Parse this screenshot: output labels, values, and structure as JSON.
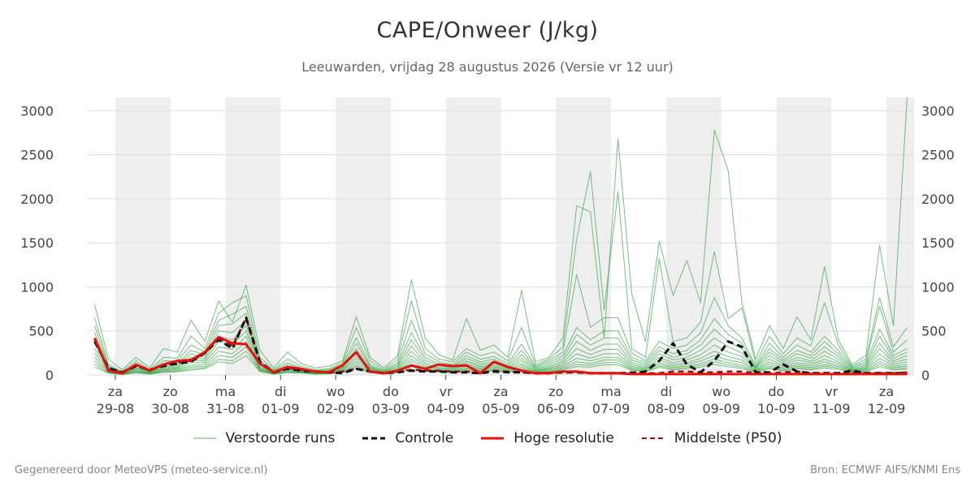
{
  "title": "CAPE/Onweer (J/kg)",
  "subtitle": "Leeuwarden, vrijdag 28 augustus 2026 (Versie vr 12 uur)",
  "footer": {
    "left": "Gegenereerd door MeteoVPS (meteo-service.nl)",
    "right": "Bron: ECMWF AIFS/KNMI Ens"
  },
  "legend": {
    "perturbed": "Verstoorde runs",
    "control": "Controle",
    "hires": "Hoge resolutie",
    "median": "Middelste (P50)"
  },
  "colors": {
    "perturbed": "#2e9e3e",
    "control": "#111111",
    "hires": "#e3120b",
    "median": "#9b1010",
    "night_band": "#eeeeee",
    "grid": "#dddddd"
  },
  "chart_data": {
    "type": "line",
    "title": "CAPE/Onweer (J/kg)",
    "x_unit": "hours after 2026-08-29 00:00",
    "xlim": [
      -12,
      348
    ],
    "ylim": [
      0,
      3150
    ],
    "yticks": [
      0,
      500,
      1000,
      1500,
      2000,
      2500,
      3000
    ],
    "grid": true,
    "legend_position": "bottom",
    "x_ticks": [
      {
        "day": "za",
        "date": "29-08"
      },
      {
        "day": "zo",
        "date": "30-08"
      },
      {
        "day": "ma",
        "date": "31-08"
      },
      {
        "day": "di",
        "date": "01-09"
      },
      {
        "day": "wo",
        "date": "02-09"
      },
      {
        "day": "do",
        "date": "03-09"
      },
      {
        "day": "vr",
        "date": "04-09"
      },
      {
        "day": "za",
        "date": "05-09"
      },
      {
        "day": "zo",
        "date": "06-09"
      },
      {
        "day": "ma",
        "date": "07-09"
      },
      {
        "day": "di",
        "date": "08-09"
      },
      {
        "day": "wo",
        "date": "09-09"
      },
      {
        "day": "do",
        "date": "10-09"
      },
      {
        "day": "vr",
        "date": "11-09"
      },
      {
        "day": "za",
        "date": "12-09"
      }
    ],
    "x": [
      -9,
      -3,
      3,
      9,
      15,
      21,
      27,
      33,
      39,
      45,
      51,
      57,
      63,
      69,
      75,
      81,
      87,
      93,
      99,
      105,
      111,
      117,
      123,
      129,
      135,
      141,
      147,
      153,
      159,
      165,
      171,
      177,
      183,
      189,
      195,
      201,
      207,
      213,
      219,
      225,
      231,
      237,
      243,
      249,
      255,
      261,
      267,
      273,
      279,
      285,
      291,
      297,
      303,
      309,
      315,
      321,
      327,
      333,
      339,
      345
    ],
    "series": [
      {
        "name": "Hoge resolutie",
        "kind": "hires",
        "values": [
          420,
          50,
          20,
          120,
          50,
          120,
          160,
          170,
          260,
          430,
          360,
          350,
          130,
          30,
          90,
          70,
          40,
          30,
          110,
          260,
          40,
          20,
          50,
          110,
          70,
          120,
          100,
          110,
          20,
          150,
          90,
          50,
          20,
          20,
          40,
          40,
          20,
          20,
          20,
          10,
          10,
          10,
          10,
          10,
          10,
          10,
          10,
          10,
          10,
          10,
          10,
          10,
          10,
          10,
          10,
          10,
          10,
          10,
          10,
          10
        ]
      },
      {
        "name": "Controle",
        "kind": "control",
        "values": [
          380,
          80,
          30,
          100,
          60,
          100,
          130,
          150,
          250,
          400,
          300,
          650,
          150,
          30,
          70,
          50,
          40,
          30,
          20,
          70,
          40,
          20,
          30,
          50,
          40,
          40,
          30,
          30,
          20,
          40,
          30,
          30,
          20,
          20,
          30,
          30,
          20,
          20,
          20,
          20,
          40,
          160,
          360,
          120,
          30,
          160,
          380,
          320,
          30,
          30,
          120,
          40,
          20,
          20,
          20,
          50,
          20,
          20,
          20,
          20
        ]
      },
      {
        "name": "Middelste (P50)",
        "kind": "median",
        "values": [
          400,
          60,
          30,
          110,
          50,
          110,
          140,
          160,
          250,
          420,
          330,
          640,
          140,
          30,
          80,
          60,
          40,
          30,
          40,
          70,
          40,
          20,
          40,
          60,
          50,
          50,
          40,
          40,
          20,
          50,
          40,
          30,
          20,
          20,
          40,
          40,
          20,
          20,
          20,
          30,
          20,
          20,
          40,
          40,
          30,
          30,
          40,
          40,
          20,
          20,
          30,
          40,
          20,
          20,
          20,
          30,
          20,
          20,
          20,
          30
        ]
      },
      {
        "name": "",
        "kind": "perturbed",
        "values": [
          800,
          180,
          60,
          200,
          80,
          300,
          260,
          620,
          380,
          840,
          600,
          1020,
          280,
          80,
          260,
          130,
          80,
          100,
          160,
          660,
          200,
          80,
          220,
          1080,
          420,
          230,
          170,
          640,
          280,
          340,
          200,
          960,
          150,
          200,
          420,
          1920,
          1850,
          420,
          2680,
          920,
          380,
          1520,
          900,
          1300,
          820,
          2780,
          2320,
          820,
          180,
          560,
          300,
          660,
          400,
          1230,
          400,
          120,
          220,
          1470,
          560,
          3160
        ]
      },
      {
        "name": "",
        "kind": "perturbed",
        "values": [
          650,
          120,
          40,
          160,
          60,
          200,
          190,
          440,
          300,
          700,
          820,
          900,
          200,
          60,
          180,
          100,
          60,
          70,
          140,
          540,
          160,
          60,
          180,
          840,
          300,
          180,
          150,
          300,
          220,
          260,
          160,
          540,
          120,
          180,
          320,
          1540,
          2310,
          740,
          2080,
          300,
          200,
          1320,
          380,
          420,
          600,
          1400,
          640,
          760,
          130,
          440,
          240,
          420,
          330,
          820,
          340,
          100,
          180,
          880,
          320,
          540
        ]
      },
      {
        "name": "",
        "kind": "perturbed",
        "values": [
          560,
          100,
          30,
          130,
          50,
          160,
          160,
          340,
          260,
          620,
          690,
          780,
          160,
          50,
          140,
          80,
          50,
          60,
          120,
          420,
          120,
          50,
          140,
          620,
          240,
          150,
          120,
          260,
          180,
          210,
          130,
          350,
          100,
          160,
          260,
          1140,
          540,
          650,
          650,
          250,
          160,
          380,
          300,
          340,
          480,
          880,
          560,
          420,
          100,
          360,
          200,
          340,
          260,
          440,
          280,
          90,
          150,
          780,
          260,
          400
        ]
      },
      {
        "name": "",
        "kind": "perturbed",
        "values": [
          480,
          90,
          25,
          110,
          45,
          130,
          130,
          280,
          230,
          560,
          580,
          700,
          140,
          40,
          120,
          70,
          40,
          50,
          100,
          360,
          100,
          40,
          120,
          480,
          200,
          120,
          100,
          220,
          150,
          180,
          110,
          280,
          90,
          140,
          220,
          540,
          400,
          500,
          500,
          200,
          140,
          320,
          240,
          280,
          400,
          640,
          460,
          360,
          90,
          300,
          170,
          280,
          220,
          380,
          240,
          80,
          130,
          520,
          220,
          300
        ]
      },
      {
        "name": "",
        "kind": "perturbed",
        "values": [
          420,
          80,
          20,
          95,
          40,
          110,
          110,
          240,
          200,
          500,
          480,
          620,
          120,
          35,
          100,
          60,
          35,
          45,
          90,
          300,
          90,
          35,
          100,
          400,
          170,
          100,
          90,
          190,
          130,
          150,
          95,
          230,
          80,
          120,
          190,
          460,
          340,
          420,
          420,
          170,
          120,
          280,
          200,
          240,
          340,
          520,
          380,
          300,
          80,
          260,
          150,
          240,
          190,
          320,
          210,
          70,
          110,
          440,
          190,
          260
        ]
      },
      {
        "name": "",
        "kind": "perturbed",
        "values": [
          360,
          70,
          18,
          80,
          35,
          95,
          95,
          200,
          180,
          440,
          400,
          560,
          100,
          30,
          85,
          50,
          30,
          40,
          80,
          250,
          80,
          30,
          85,
          330,
          140,
          85,
          80,
          160,
          110,
          130,
          80,
          190,
          70,
          100,
          160,
          380,
          280,
          350,
          350,
          140,
          100,
          240,
          170,
          200,
          280,
          420,
          320,
          250,
          70,
          220,
          130,
          200,
          160,
          270,
          180,
          60,
          95,
          360,
          160,
          220
        ]
      },
      {
        "name": "",
        "kind": "perturbed",
        "values": [
          300,
          60,
          15,
          70,
          30,
          80,
          85,
          170,
          160,
          380,
          340,
          500,
          85,
          25,
          70,
          45,
          25,
          35,
          70,
          210,
          70,
          25,
          70,
          270,
          120,
          75,
          70,
          140,
          95,
          110,
          70,
          160,
          60,
          85,
          140,
          300,
          230,
          290,
          290,
          120,
          85,
          200,
          140,
          170,
          230,
          340,
          260,
          210,
          60,
          180,
          110,
          170,
          140,
          220,
          150,
          55,
          80,
          300,
          140,
          180
        ]
      },
      {
        "name": "",
        "kind": "perturbed",
        "values": [
          250,
          50,
          12,
          60,
          25,
          70,
          75,
          140,
          140,
          320,
          290,
          440,
          75,
          20,
          60,
          40,
          20,
          30,
          60,
          180,
          60,
          20,
          60,
          220,
          100,
          65,
          60,
          120,
          80,
          95,
          60,
          130,
          50,
          75,
          120,
          240,
          190,
          240,
          240,
          100,
          75,
          170,
          120,
          140,
          190,
          270,
          210,
          170,
          50,
          150,
          95,
          140,
          120,
          180,
          130,
          50,
          70,
          240,
          120,
          150
        ]
      },
      {
        "name": "",
        "kind": "perturbed",
        "values": [
          200,
          40,
          10,
          50,
          20,
          60,
          65,
          110,
          120,
          270,
          240,
          380,
          65,
          18,
          50,
          35,
          18,
          25,
          50,
          150,
          50,
          18,
          50,
          180,
          85,
          55,
          50,
          100,
          70,
          80,
          50,
          110,
          45,
          65,
          100,
          190,
          160,
          200,
          200,
          85,
          65,
          140,
          100,
          120,
          160,
          220,
          170,
          140,
          45,
          125,
          80,
          120,
          100,
          150,
          110,
          45,
          60,
          190,
          100,
          120
        ]
      },
      {
        "name": "",
        "kind": "perturbed",
        "values": [
          160,
          30,
          8,
          40,
          16,
          50,
          55,
          90,
          100,
          220,
          200,
          320,
          55,
          15,
          40,
          30,
          15,
          20,
          40,
          120,
          40,
          15,
          40,
          150,
          70,
          45,
          40,
          85,
          60,
          65,
          40,
          90,
          40,
          55,
          85,
          150,
          130,
          170,
          170,
          70,
          55,
          120,
          85,
          100,
          130,
          180,
          140,
          110,
          40,
          100,
          70,
          100,
          85,
          120,
          95,
          40,
          50,
          150,
          85,
          100
        ]
      },
      {
        "name": "",
        "kind": "perturbed",
        "values": [
          120,
          25,
          6,
          30,
          12,
          40,
          45,
          70,
          85,
          180,
          160,
          270,
          45,
          12,
          32,
          25,
          12,
          16,
          32,
          100,
          32,
          12,
          32,
          120,
          55,
          38,
          32,
          70,
          50,
          55,
          32,
          75,
          32,
          45,
          70,
          120,
          110,
          140,
          140,
          60,
          45,
          100,
          70,
          85,
          110,
          150,
          115,
          90,
          32,
          85,
          55,
          85,
          70,
          100,
          80,
          32,
          40,
          120,
          70,
          80
        ]
      },
      {
        "name": "",
        "kind": "perturbed",
        "values": [
          90,
          20,
          5,
          25,
          10,
          30,
          35,
          55,
          70,
          150,
          130,
          220,
          38,
          10,
          26,
          20,
          10,
          13,
          26,
          80,
          26,
          10,
          26,
          95,
          45,
          32,
          26,
          58,
          40,
          45,
          26,
          60,
          26,
          38,
          58,
          95,
          90,
          115,
          115,
          50,
          38,
          85,
          58,
          70,
          90,
          120,
          95,
          75,
          26,
          70,
          45,
          70,
          58,
          80,
          65,
          26,
          32,
          95,
          58,
          65
        ]
      }
    ]
  }
}
